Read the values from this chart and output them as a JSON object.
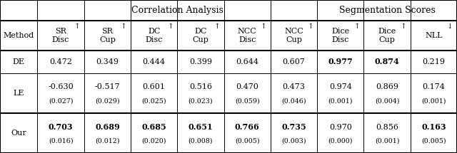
{
  "title_corr": "Correlation Analysis",
  "title_seg": "Segmentation Scores",
  "col_headers_main": [
    "SR\nDisc",
    "SR\nCup",
    "DC\nDisc",
    "DC\nCup",
    "NCC\nDisc",
    "NCC\nCup",
    "Dice\nDisc",
    "Dice\nCup",
    "NLL"
  ],
  "col_arrows": [
    "↑",
    "↑",
    "↑",
    "↑",
    "↑",
    "↑",
    "↑",
    "↑",
    "↓"
  ],
  "rows": [
    {
      "method": "DE",
      "values": [
        "0.472",
        "0.349",
        "0.444",
        "0.399",
        "0.644",
        "0.607",
        "0.977",
        "0.874",
        "0.219"
      ],
      "bold": [
        false,
        false,
        false,
        false,
        false,
        false,
        true,
        true,
        false
      ],
      "sub": [
        "",
        "",
        "",
        "",
        "",
        "",
        "",
        "",
        ""
      ]
    },
    {
      "method": "LE",
      "values": [
        "-0.630",
        "-0.517",
        "0.601",
        "0.516",
        "0.470",
        "0.473",
        "0.974",
        "0.869",
        "0.174"
      ],
      "bold": [
        false,
        false,
        false,
        false,
        false,
        false,
        false,
        false,
        false
      ],
      "sub": [
        "(0.027)",
        "(0.029)",
        "(0.025)",
        "(0.023)",
        "(0.059)",
        "(0.046)",
        "(0.001)",
        "(0.004)",
        "(0.001)"
      ]
    },
    {
      "method": "Our",
      "values": [
        "0.703",
        "0.689",
        "0.685",
        "0.651",
        "0.766",
        "0.735",
        "0.970",
        "0.856",
        "0.163"
      ],
      "bold": [
        true,
        true,
        true,
        true,
        true,
        true,
        false,
        false,
        true
      ],
      "sub": [
        "(0.016)",
        "(0.012)",
        "(0.020)",
        "(0.008)",
        "(0.005)",
        "(0.003)",
        "(0.000)",
        "(0.001)",
        "(0.005)"
      ]
    }
  ],
  "bg_color": "#ffffff",
  "font_size": 8.0,
  "small_font_size": 6.8,
  "header_font_size": 8.0,
  "title_font_size": 9.0
}
